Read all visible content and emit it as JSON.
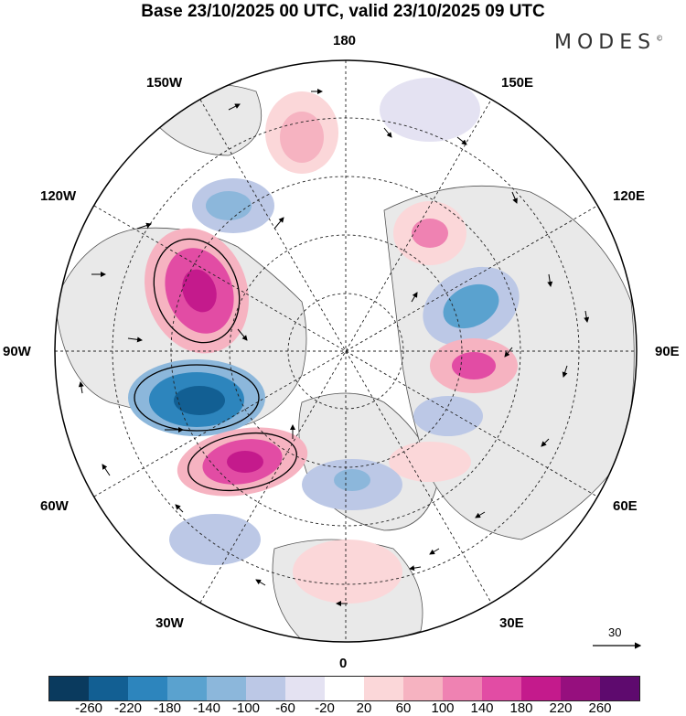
{
  "title": "Base 23/10/2025 00 UTC, valid 23/10/2025 09 UTC",
  "logo": {
    "text": "MODES",
    "mark": "©"
  },
  "longitude_labels": {
    "top": "180",
    "bottom": "0",
    "left": "90W",
    "right": "90E",
    "upper_left_1": "150W",
    "upper_left_2": "120W",
    "lower_left_1": "60W",
    "lower_left_2": "30W",
    "upper_right_1": "150E",
    "upper_right_2": "120E",
    "lower_right_1": "60E",
    "lower_right_2": "30E"
  },
  "vector_reference": {
    "value": "30"
  },
  "colorbar": {
    "colors": [
      "#0a3a5e",
      "#125f93",
      "#2d85bd",
      "#5aa2cf",
      "#8cb7db",
      "#bcc8e6",
      "#e4e2f2",
      "#ffffff",
      "#fbd7d9",
      "#f6b3c1",
      "#ef82b2",
      "#e24ca4",
      "#c41a8c",
      "#960f7e",
      "#5e0a6e"
    ],
    "ticks": [
      "-260",
      "-220",
      "-180",
      "-140",
      "-100",
      "-60",
      "-20",
      "20",
      "60",
      "100",
      "140",
      "180",
      "220",
      "260"
    ]
  }
}
